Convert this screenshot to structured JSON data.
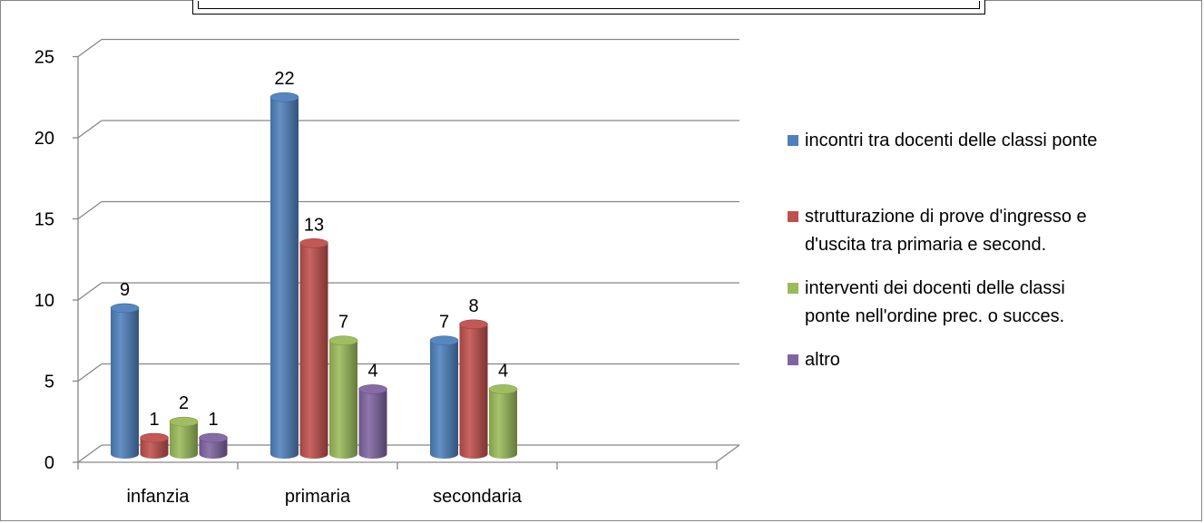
{
  "chart_data": {
    "type": "bar",
    "title": "",
    "categories": [
      "infanzia",
      "primaria",
      "secondaria"
    ],
    "series": [
      {
        "name": "incontri tra docenti delle classi ponte",
        "color": "#4F81BD",
        "values": [
          9,
          22,
          7
        ]
      },
      {
        "name": "strutturazione di prove d'ingresso e d'uscita tra primaria e second.",
        "color": "#C0504D",
        "values": [
          1,
          13,
          8
        ]
      },
      {
        "name": "interventi dei docenti delle classi ponte nell'ordine prec. o succes.",
        "color": "#9BBB59",
        "values": [
          2,
          7,
          4
        ]
      },
      {
        "name": "altro",
        "color": "#8064A2",
        "values": [
          1,
          4,
          null
        ]
      }
    ],
    "yticks": [
      "0",
      "5",
      "10",
      "15",
      "20",
      "25"
    ],
    "ylim": [
      0,
      25
    ],
    "grid": true,
    "legend_position": "right",
    "style": "3d-cylinder"
  },
  "legend": {
    "items": [
      "incontri tra docenti delle classi ponte",
      "strutturazione di prove d'ingresso e\nd'uscita tra primaria e second.",
      "interventi dei docenti delle classi\nponte nell'ordine prec. o succes.",
      "altro"
    ]
  }
}
